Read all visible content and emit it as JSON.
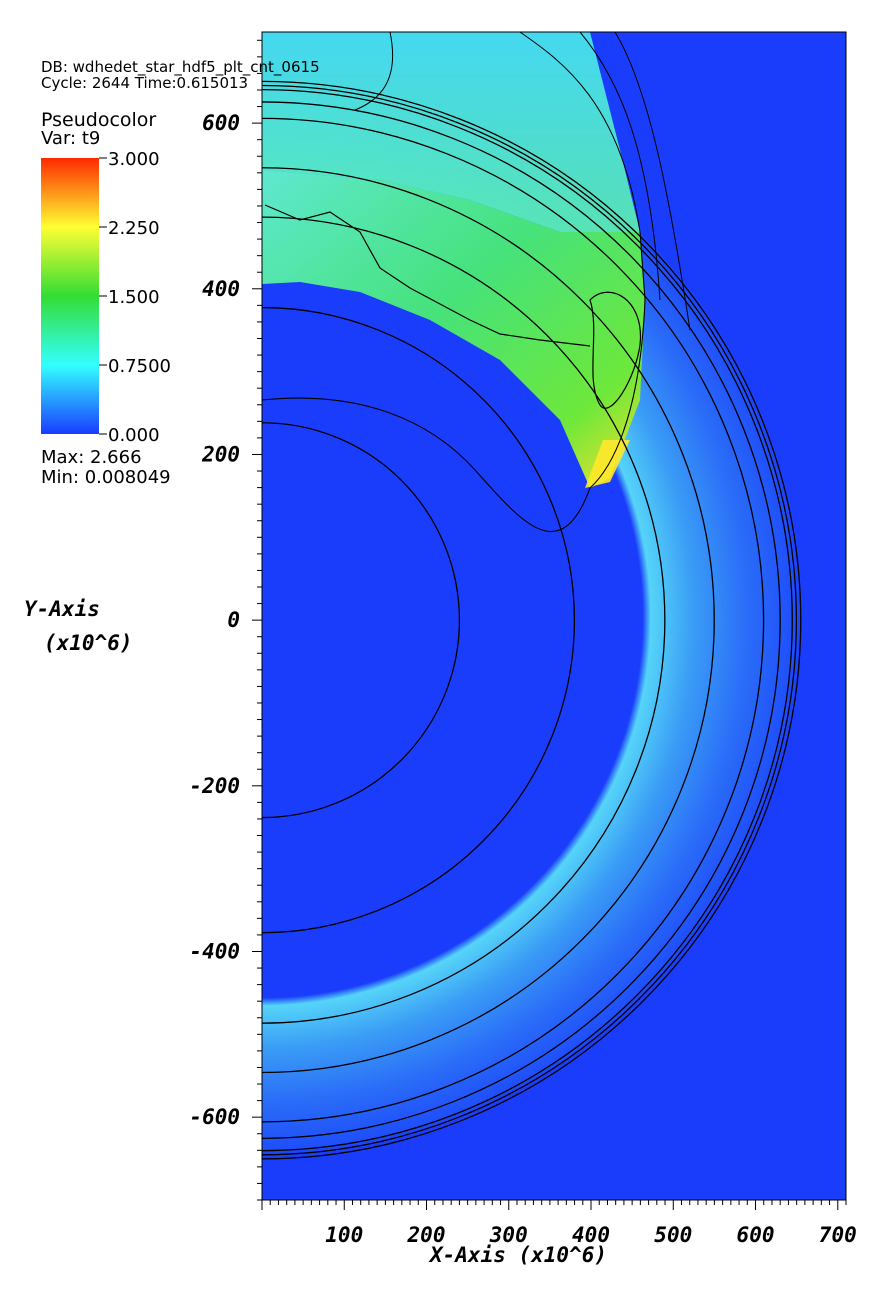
{
  "header": {
    "db_line": "DB: wdhedet_star_hdf5_plt_cnt_0615",
    "cycle_line": "Cycle: 2644    Time:0.615013"
  },
  "legend": {
    "plot_type": "Pseudocolor",
    "var_line": "Var: t9",
    "max_line": "Max: 2.666",
    "min_line": "Min:  0.008049",
    "ticks": [
      "3.000",
      "2.250",
      "1.500",
      "0.7500",
      "0.000"
    ],
    "colormap": [
      "#ff2a00",
      "#ffff33",
      "#33dd33",
      "#33ffff",
      "#1a3cff"
    ]
  },
  "colors": {
    "background_field": "#1a3dfb",
    "contour": "#000000"
  },
  "chart_data": {
    "type": "heatmap",
    "variable": "t9",
    "data_range": [
      0.008049,
      2.666
    ],
    "color_range": [
      0.0,
      3.0
    ],
    "xlabel": "X-Axis (x10^6)",
    "ylabel": "Y-Axis (x10^6)",
    "xlim": [
      0,
      710
    ],
    "ylim": [
      -700,
      710
    ],
    "x_ticks": [
      "100",
      "200",
      "300",
      "400",
      "500",
      "600",
      "700"
    ],
    "y_ticks": [
      "600",
      "400",
      "200",
      "0",
      "-200",
      "-400",
      "-600"
    ],
    "y_tick_values": [
      600,
      400,
      200,
      0,
      -200,
      -400,
      -600
    ],
    "x_tick_values": [
      100,
      200,
      300,
      400,
      500,
      600,
      700
    ],
    "contour_radii": [
      240,
      380,
      490,
      550,
      610,
      630,
      645,
      650,
      655
    ],
    "shell": {
      "inner_radius": 450,
      "peak_radius": 500,
      "outer_radius": 630,
      "peak_t9": 0.75
    },
    "detonation_point": [
      400,
      160
    ],
    "hot_region": {
      "t9_range": [
        0.75,
        2.2
      ]
    }
  }
}
